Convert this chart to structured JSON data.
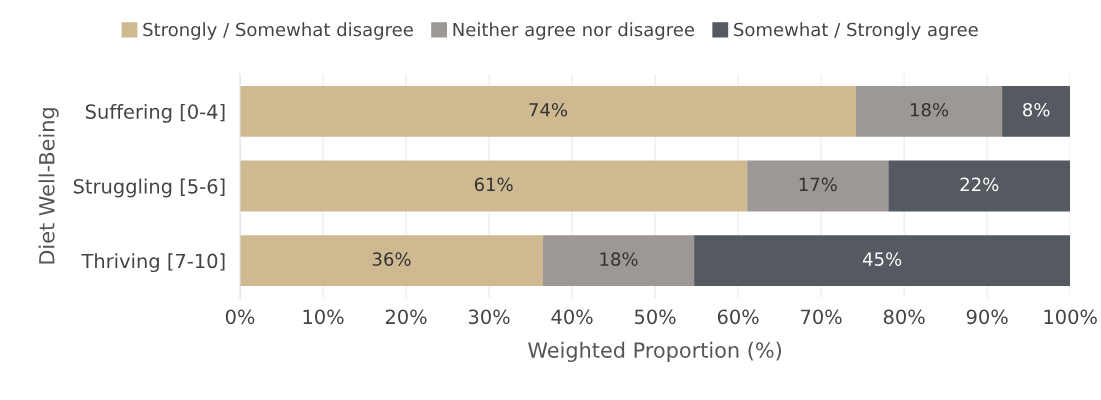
{
  "chart_data": {
    "type": "bar",
    "orientation": "horizontal",
    "stacked": true,
    "xlabel": "Weighted Proportion (%)",
    "ylabel": "Diet Well-Being",
    "categories": [
      "Suffering [0-4]",
      "Struggling [5-6]",
      "Thriving [7-10]"
    ],
    "series": [
      {
        "name": "Strongly / Somewhat disagree",
        "color": "#cfb991",
        "values": [
          74.2,
          61.1,
          36.5
        ],
        "value_labels": [
          "74%",
          "61%",
          "36%"
        ]
      },
      {
        "name": "Neither agree nor disagree",
        "color": "#9d9795",
        "values": [
          17.6,
          17.0,
          18.2
        ],
        "value_labels": [
          "18%",
          "17%",
          "18%"
        ]
      },
      {
        "name": "Somewhat / Strongly agree",
        "color": "#555960",
        "values": [
          8.2,
          21.9,
          45.3
        ],
        "value_labels": [
          "8%",
          "22%",
          "45%"
        ]
      }
    ],
    "xlim": [
      0,
      100
    ],
    "xticks": [
      {
        "value": 0,
        "label": "0%"
      },
      {
        "value": 10,
        "label": "10%"
      },
      {
        "value": 20,
        "label": "20%"
      },
      {
        "value": 30,
        "label": "30%"
      },
      {
        "value": 40,
        "label": "40%"
      },
      {
        "value": 50,
        "label": "50%"
      },
      {
        "value": 60,
        "label": "60%"
      },
      {
        "value": 70,
        "label": "70%"
      },
      {
        "value": 80,
        "label": "80%"
      },
      {
        "value": 90,
        "label": "90%"
      },
      {
        "value": 100,
        "label": "100%"
      }
    ],
    "grid": "x",
    "legend": "top"
  }
}
